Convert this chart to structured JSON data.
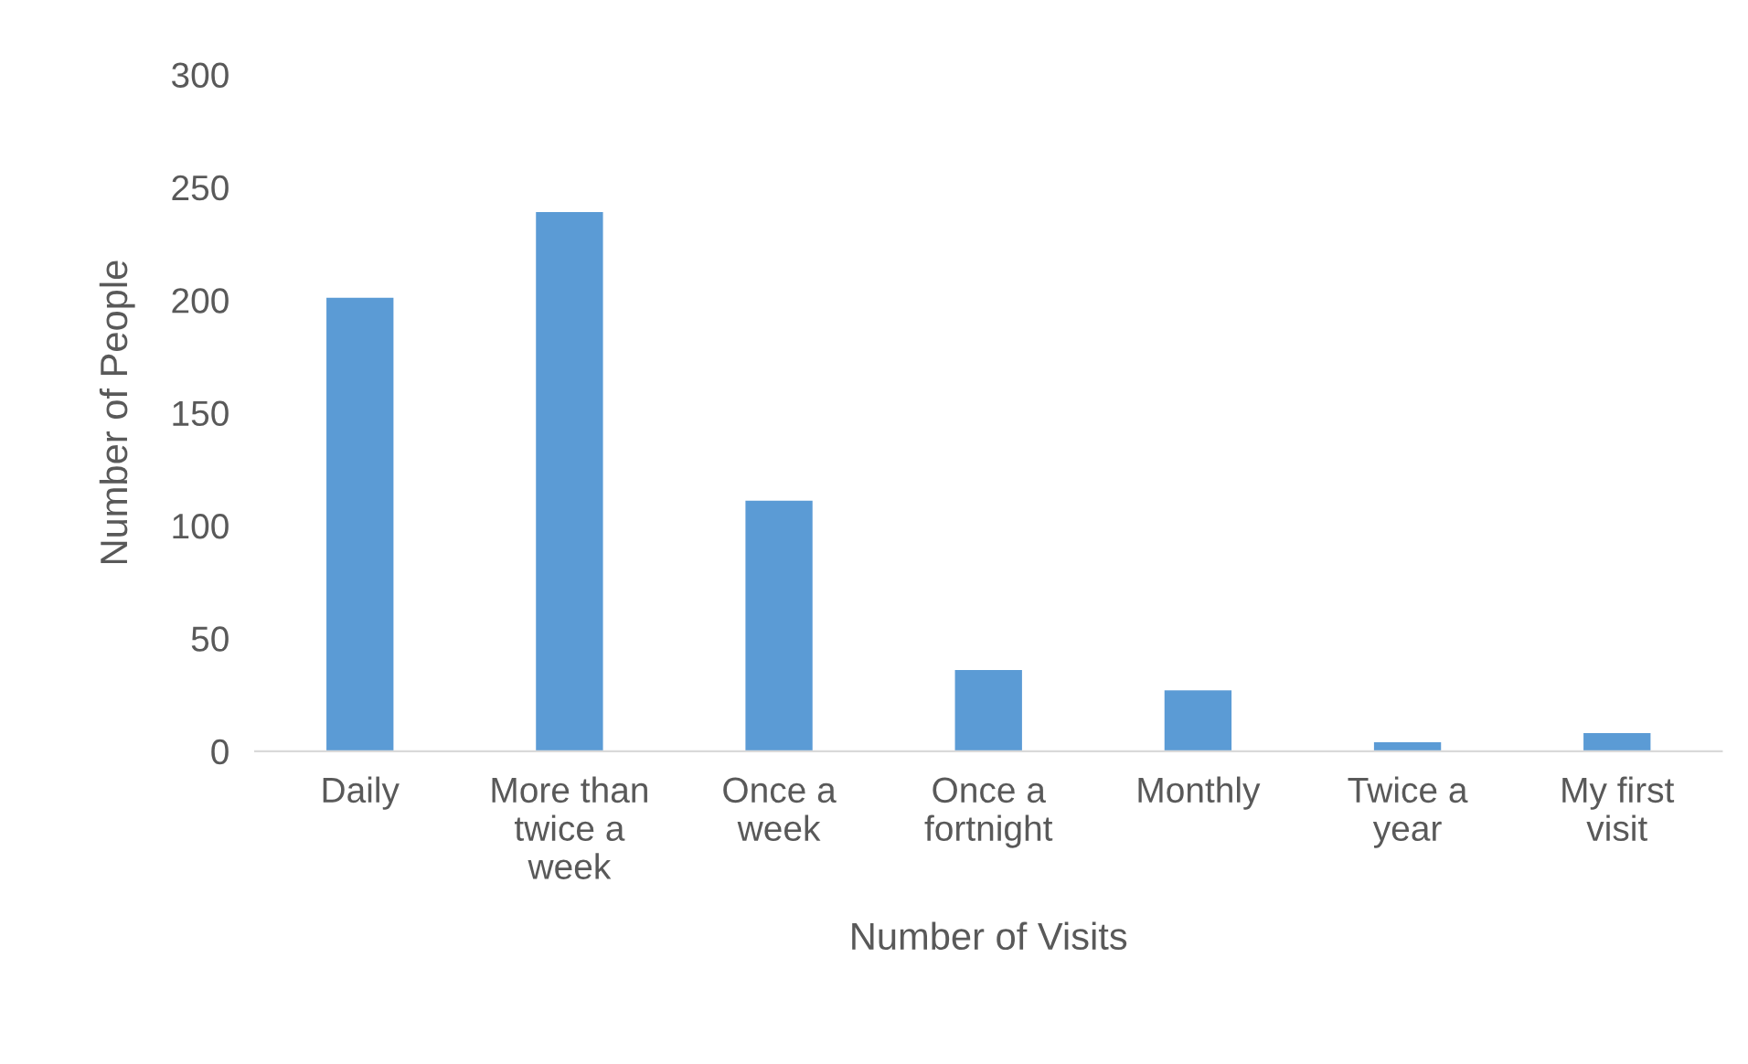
{
  "chart_data": {
    "type": "bar",
    "xlabel": "Number of Visits",
    "ylabel": "Number of People",
    "categories": [
      "Daily",
      "More than\ntwice a\nweek",
      "Once a\nweek",
      "Once a\nfortnight",
      "Monthly",
      "Twice a\nyear",
      "My first\nvisit"
    ],
    "values": [
      201,
      239,
      111,
      36,
      27,
      4,
      8
    ],
    "color": "#5b9bd5",
    "ylim": [
      0,
      300
    ],
    "yticks": [
      0,
      50,
      100,
      150,
      200,
      250,
      300
    ],
    "grid": false
  }
}
